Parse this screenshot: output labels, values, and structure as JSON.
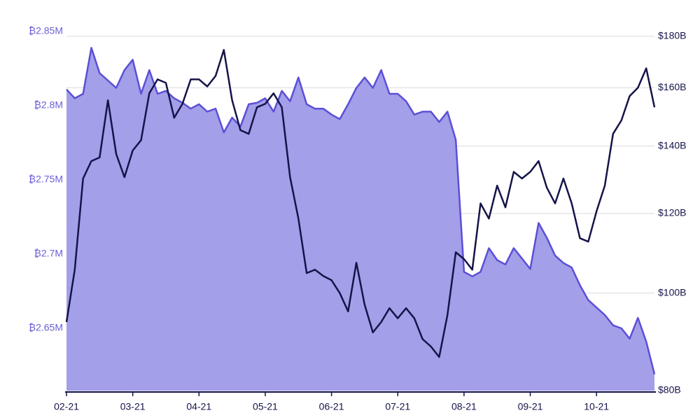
{
  "chart_data": {
    "type": "line",
    "categories": [
      "02-21",
      null,
      null,
      null,
      null,
      null,
      null,
      null,
      "03-21",
      null,
      null,
      null,
      null,
      null,
      null,
      null,
      "04-21",
      null,
      null,
      null,
      null,
      null,
      null,
      null,
      "05-21",
      null,
      null,
      null,
      null,
      null,
      null,
      null,
      "06-21",
      null,
      null,
      null,
      null,
      null,
      null,
      null,
      "07-21",
      null,
      null,
      null,
      null,
      null,
      null,
      null,
      "08-21",
      null,
      null,
      null,
      null,
      null,
      null,
      null,
      "09-21",
      null,
      null,
      null,
      null,
      null,
      null,
      null,
      "10-21",
      null,
      null,
      null,
      null,
      null,
      null,
      null
    ],
    "series": [
      {
        "type": "area",
        "color": "#5b4fd6",
        "fill": "#a39fe8",
        "axis": "y",
        "values": [
          2.811,
          2.805,
          2.808,
          2.839,
          2.822,
          2.817,
          2.812,
          2.824,
          2.831,
          2.808,
          2.824,
          2.808,
          2.81,
          2.805,
          2.802,
          2.798,
          2.801,
          2.796,
          2.798,
          2.782,
          2.792,
          2.786,
          2.801,
          2.802,
          2.805,
          2.796,
          2.81,
          2.803,
          2.819,
          2.801,
          2.798,
          2.798,
          2.794,
          2.791,
          2.801,
          2.812,
          2.819,
          2.812,
          2.824,
          2.808,
          2.808,
          2.803,
          2.794,
          2.796,
          2.796,
          2.789,
          2.796,
          2.777,
          2.688,
          2.685,
          2.688,
          2.704,
          2.696,
          2.693,
          2.704,
          2.697,
          2.69,
          2.721,
          2.711,
          2.699,
          2.694,
          2.691,
          2.679,
          2.669,
          2.664,
          2.659,
          2.652,
          2.65,
          2.643,
          2.657,
          2.641,
          2.619
        ]
      },
      {
        "type": "line",
        "color": "#14144a",
        "axis": "y2",
        "values": [
          93.6,
          105.5,
          130,
          135.3,
          136.4,
          155.5,
          137.5,
          130.4,
          138.6,
          141.9,
          158,
          163.1,
          161.8,
          149.4,
          154.2,
          163.1,
          163.1,
          160.5,
          164.4,
          174.5,
          155.5,
          145.2,
          144,
          153,
          154.2,
          158,
          153,
          130.4,
          118.6,
          104.7,
          105.5,
          104,
          103,
          100,
          95.9,
          107.2,
          97.4,
          91.4,
          93.6,
          96.6,
          94.4,
          96.6,
          94.4,
          90,
          88.5,
          86.4,
          95.1,
          109.8,
          108.1,
          105.5,
          122.8,
          118.6,
          127.9,
          121.7,
          132,
          130,
          132,
          135.3,
          127.3,
          122.8,
          130,
          122.8,
          113.4,
          112.5,
          120.6,
          127.9,
          144,
          148.5,
          157,
          160,
          167.3,
          153
        ]
      }
    ],
    "ylim": [
      2.608,
      2.85
    ],
    "yticks": [
      {
        "value": 2.85,
        "label": "₿2.85M"
      },
      {
        "value": 2.8,
        "label": "₿2.8M"
      },
      {
        "value": 2.75,
        "label": "₿2.75M"
      },
      {
        "value": 2.7,
        "label": "₿2.7M"
      },
      {
        "value": 2.65,
        "label": "₿2.65M"
      }
    ],
    "y2lim": [
      80,
      182
    ],
    "y2log": true,
    "y2ticks": [
      {
        "value": 180,
        "label": "$180B"
      },
      {
        "value": 160,
        "label": "$160B"
      },
      {
        "value": 140,
        "label": "$140B"
      },
      {
        "value": 120,
        "label": "$120B"
      },
      {
        "value": 100,
        "label": "$100B"
      },
      {
        "value": 80,
        "label": "$80B"
      }
    ],
    "grid": "y2"
  }
}
